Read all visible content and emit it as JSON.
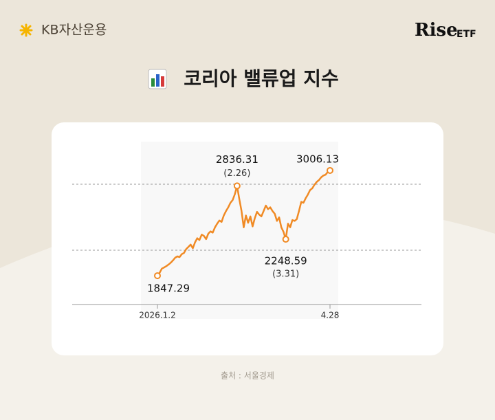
{
  "header": {
    "brand": "KB자산운용",
    "logo": "Rise",
    "logo_suffix": "ETF"
  },
  "chart_data": {
    "type": "line",
    "title": "코리아 밸류업 지수",
    "color": "#f08a24",
    "categories": [
      "2026.1.2",
      null,
      null,
      null,
      null,
      null,
      null,
      null,
      null,
      null,
      null,
      null,
      null,
      null,
      null,
      null,
      null,
      null,
      null,
      null,
      null,
      null,
      null,
      null,
      null,
      null,
      null,
      null,
      null,
      null,
      null,
      null,
      null,
      null,
      null,
      null,
      null,
      null,
      null,
      null,
      null,
      null,
      null,
      null,
      null,
      null,
      null,
      null,
      null,
      null,
      null,
      null,
      null,
      null,
      null,
      null,
      null,
      null,
      null,
      null,
      null,
      null,
      null,
      null,
      null,
      null,
      null,
      null,
      null,
      null,
      null,
      null,
      null,
      null,
      null,
      null,
      null,
      null,
      "4.28"
    ],
    "values": [
      1847.29,
      1880,
      1925,
      1938,
      1952,
      1970,
      1990,
      2015,
      2045,
      2060,
      2052,
      2085,
      2098,
      2140,
      2165,
      2190,
      2150,
      2215,
      2260,
      2240,
      2300,
      2285,
      2250,
      2310,
      2335,
      2322,
      2380,
      2420,
      2455,
      2440,
      2510,
      2560,
      2600,
      2650,
      2680,
      2745,
      2836.31,
      2690,
      2560,
      2380,
      2510,
      2430,
      2500,
      2390,
      2480,
      2550,
      2520,
      2500,
      2560,
      2620,
      2580,
      2600,
      2560,
      2530,
      2450,
      2490,
      2380,
      2330,
      2248.59,
      2420,
      2380,
      2460,
      2450,
      2470,
      2560,
      2660,
      2650,
      2700,
      2740,
      2790,
      2810,
      2850,
      2880,
      2900,
      2930,
      2950,
      2960,
      2990,
      3006.13
    ],
    "value_labels": [
      "1847.29",
      null,
      null,
      null,
      null,
      null,
      null,
      null,
      null,
      null,
      null,
      null,
      null,
      null,
      null,
      null,
      null,
      null,
      null,
      null,
      null,
      null,
      null,
      null,
      null,
      null,
      null,
      null,
      null,
      null,
      null,
      null,
      null,
      null,
      null,
      null,
      "2836.31",
      null,
      null,
      null,
      null,
      null,
      null,
      null,
      null,
      null,
      null,
      null,
      null,
      null,
      null,
      null,
      null,
      null,
      null,
      null,
      null,
      null,
      "2248.59",
      null,
      null,
      null,
      null,
      null,
      null,
      null,
      null,
      null,
      null,
      null,
      null,
      null,
      null,
      null,
      null,
      null,
      null,
      null,
      "3006.13"
    ],
    "notes": [
      null,
      null,
      null,
      null,
      null,
      null,
      null,
      null,
      null,
      null,
      null,
      null,
      null,
      null,
      null,
      null,
      null,
      null,
      null,
      null,
      null,
      null,
      null,
      null,
      null,
      null,
      null,
      null,
      null,
      null,
      null,
      null,
      null,
      null,
      null,
      null,
      "(2.26)",
      null,
      null,
      null,
      null,
      null,
      null,
      null,
      null,
      null,
      null,
      null,
      null,
      null,
      null,
      null,
      null,
      null,
      null,
      null,
      null,
      null,
      "(3.31)",
      null,
      null,
      null,
      null,
      null,
      null,
      null,
      null,
      null,
      null,
      null,
      null,
      null,
      null,
      null,
      null,
      null,
      null,
      null,
      null
    ],
    "ylim": [
      1530,
      3180
    ]
  },
  "footer": {
    "source": "출처 : 서울경제"
  }
}
